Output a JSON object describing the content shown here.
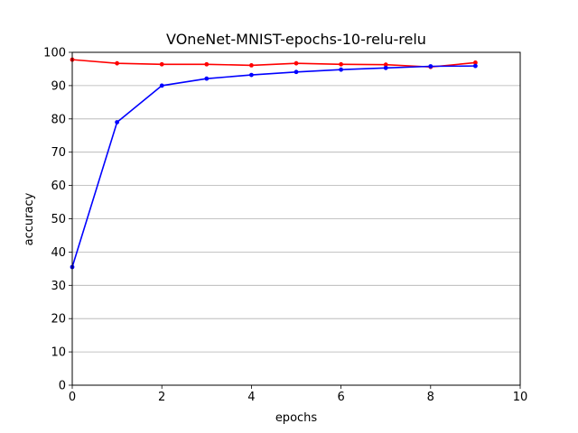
{
  "chart_data": {
    "type": "line",
    "title": "VOneNet-MNIST-epochs-10-relu-relu",
    "xlabel": "epochs",
    "ylabel": "accuracy",
    "xlim": [
      0,
      10
    ],
    "ylim": [
      0,
      100
    ],
    "xticks": [
      0,
      2,
      4,
      6,
      8,
      10
    ],
    "yticks": [
      0,
      10,
      20,
      30,
      40,
      50,
      60,
      70,
      80,
      90,
      100
    ],
    "grid": "horizontal",
    "series": [
      {
        "name": "red",
        "color": "#ff0000",
        "x": [
          0,
          1,
          2,
          3,
          4,
          5,
          6,
          7,
          8,
          9
        ],
        "values": [
          97.8,
          96.7,
          96.4,
          96.4,
          96.1,
          96.7,
          96.4,
          96.3,
          95.6,
          96.9
        ]
      },
      {
        "name": "blue",
        "color": "#0000ff",
        "x": [
          0,
          1,
          2,
          3,
          4,
          5,
          6,
          7,
          8,
          9
        ],
        "values": [
          35.5,
          79.0,
          90.0,
          92.1,
          93.2,
          94.1,
          94.8,
          95.3,
          95.8,
          95.9
        ]
      }
    ]
  }
}
